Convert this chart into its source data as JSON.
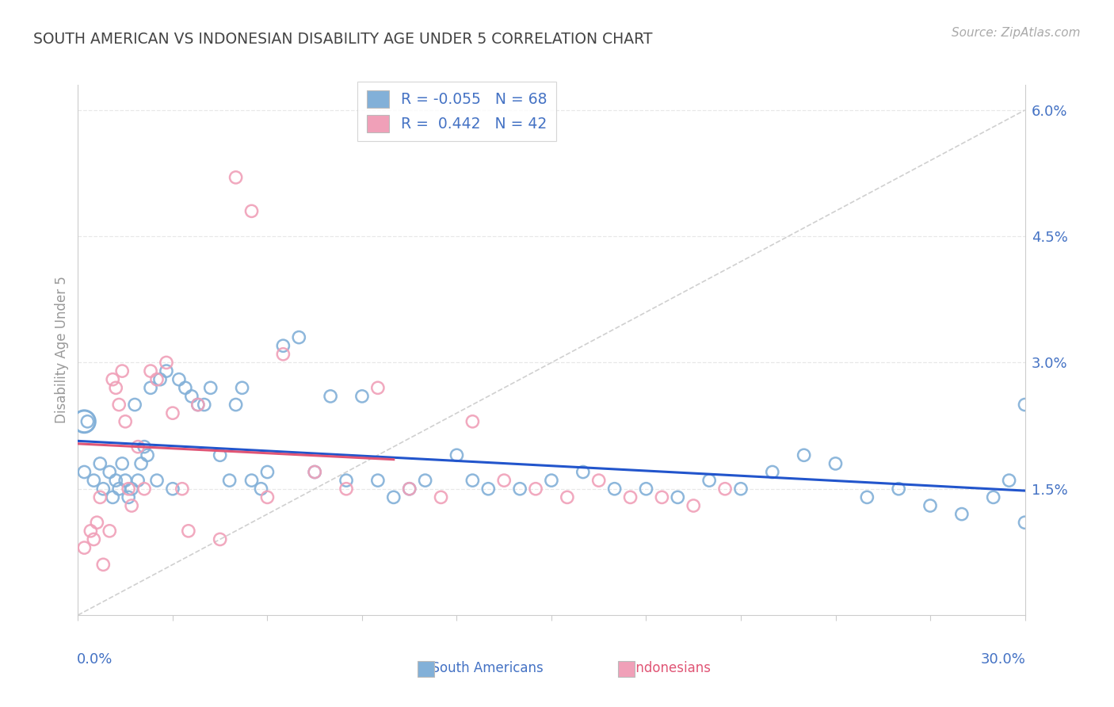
{
  "title": "SOUTH AMERICAN VS INDONESIAN DISABILITY AGE UNDER 5 CORRELATION CHART",
  "source": "Source: ZipAtlas.com",
  "ylabel": "Disability Age Under 5",
  "xlim": [
    0.0,
    30.0
  ],
  "ylim": [
    0.0,
    6.3
  ],
  "ytick_positions": [
    1.5,
    3.0,
    4.5,
    6.0
  ],
  "ytick_labels": [
    "1.5%",
    "3.0%",
    "4.5%",
    "6.0%"
  ],
  "blue_color": "#82b0d8",
  "pink_color": "#f0a0b8",
  "blue_trend_color": "#2255cc",
  "pink_trend_color": "#e05575",
  "diag_color": "#d0d0d0",
  "grid_color": "#e8e8e8",
  "title_color": "#444444",
  "axis_label_color": "#4472c4",
  "source_color": "#aaaaaa",
  "background_color": "#ffffff",
  "legend_text_color": "#4472c4",
  "legend_r_neg": "-0.055",
  "legend_n_sa": "68",
  "legend_r_pos": "0.442",
  "legend_n_id": "42",
  "sa_x": [
    0.2,
    0.3,
    0.5,
    0.7,
    0.8,
    1.0,
    1.1,
    1.2,
    1.3,
    1.4,
    1.5,
    1.6,
    1.7,
    1.8,
    1.9,
    2.0,
    2.1,
    2.2,
    2.3,
    2.5,
    2.6,
    2.8,
    3.0,
    3.2,
    3.4,
    3.6,
    3.8,
    4.0,
    4.2,
    4.5,
    4.8,
    5.0,
    5.2,
    5.5,
    5.8,
    6.0,
    6.5,
    7.0,
    7.5,
    8.0,
    8.5,
    9.0,
    9.5,
    10.0,
    10.5,
    11.0,
    12.0,
    12.5,
    13.0,
    14.0,
    15.0,
    16.0,
    17.0,
    18.0,
    19.0,
    20.0,
    21.0,
    22.0,
    23.0,
    24.0,
    25.0,
    26.0,
    27.0,
    28.0,
    29.0,
    29.5,
    30.0,
    30.0
  ],
  "sa_y": [
    1.7,
    2.3,
    1.6,
    1.8,
    1.5,
    1.7,
    1.4,
    1.6,
    1.5,
    1.8,
    1.6,
    1.4,
    1.5,
    2.5,
    1.6,
    1.8,
    2.0,
    1.9,
    2.7,
    1.6,
    2.8,
    2.9,
    1.5,
    2.8,
    2.7,
    2.6,
    2.5,
    2.5,
    2.7,
    1.9,
    1.6,
    2.5,
    2.7,
    1.6,
    1.5,
    1.7,
    3.2,
    3.3,
    1.7,
    2.6,
    1.6,
    2.6,
    1.6,
    1.4,
    1.5,
    1.6,
    1.9,
    1.6,
    1.5,
    1.5,
    1.6,
    1.7,
    1.5,
    1.5,
    1.4,
    1.6,
    1.5,
    1.7,
    1.9,
    1.8,
    1.4,
    1.5,
    1.3,
    1.2,
    1.4,
    1.6,
    2.5,
    1.1
  ],
  "sa_big_x": 0.2,
  "sa_big_y": 2.3,
  "id_x": [
    0.2,
    0.4,
    0.5,
    0.6,
    0.7,
    0.8,
    1.0,
    1.1,
    1.2,
    1.3,
    1.4,
    1.5,
    1.6,
    1.7,
    1.9,
    2.1,
    2.3,
    2.5,
    2.8,
    3.0,
    3.3,
    3.8,
    4.5,
    5.0,
    5.5,
    6.5,
    7.5,
    8.5,
    9.5,
    10.5,
    11.5,
    12.5,
    13.5,
    14.5,
    15.5,
    16.5,
    17.5,
    18.5,
    19.5,
    20.5,
    6.0,
    3.5
  ],
  "id_y": [
    0.8,
    1.0,
    0.9,
    1.1,
    1.4,
    0.6,
    1.0,
    2.8,
    2.7,
    2.5,
    2.9,
    2.3,
    1.5,
    1.3,
    2.0,
    1.5,
    2.9,
    2.8,
    3.0,
    2.4,
    1.5,
    2.5,
    0.9,
    5.2,
    4.8,
    3.1,
    1.7,
    1.5,
    2.7,
    1.5,
    1.4,
    2.3,
    1.6,
    1.5,
    1.4,
    1.6,
    1.4,
    1.4,
    1.3,
    1.5,
    1.4,
    1.0
  ]
}
